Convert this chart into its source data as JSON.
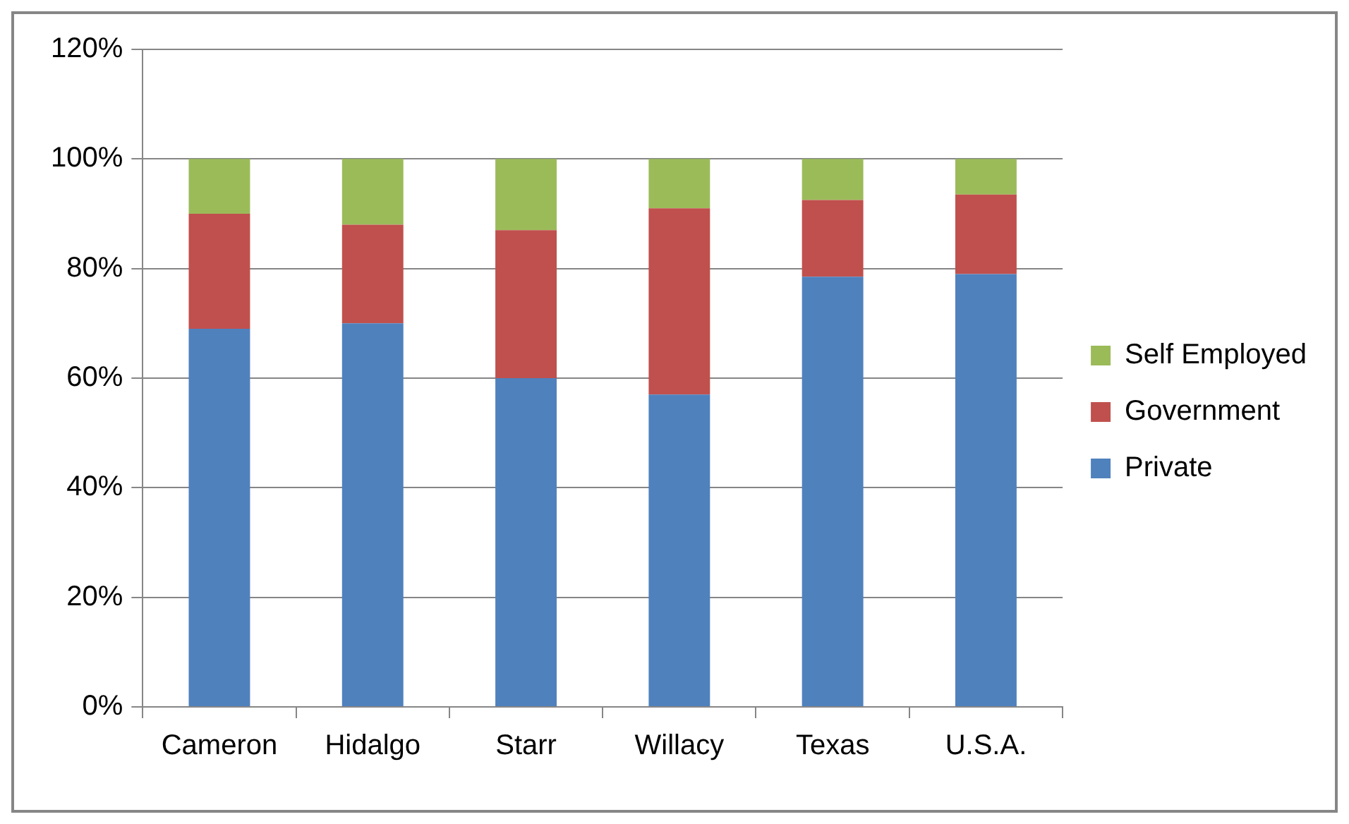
{
  "chart_data": {
    "type": "bar",
    "stacked": true,
    "categories": [
      "Cameron",
      "Hidalgo",
      "Starr",
      "Willacy",
      "Texas",
      "U.S.A."
    ],
    "series": [
      {
        "name": "Private",
        "color": "#4f81bd",
        "values": [
          69,
          70,
          60,
          57,
          78.5,
          79
        ]
      },
      {
        "name": "Government",
        "color": "#c0504d",
        "values": [
          21,
          18,
          27,
          34,
          14,
          14.5
        ]
      },
      {
        "name": "Self Employed",
        "color": "#9bbb59",
        "values": [
          10,
          12,
          13,
          9,
          7.5,
          6.5
        ]
      }
    ],
    "ylim": [
      0,
      120
    ],
    "yticks": [
      {
        "value": 0,
        "label": "0%"
      },
      {
        "value": 20,
        "label": "20%"
      },
      {
        "value": 40,
        "label": "40%"
      },
      {
        "value": 60,
        "label": "60%"
      },
      {
        "value": 80,
        "label": "80%"
      },
      {
        "value": 100,
        "label": "100%"
      },
      {
        "value": 120,
        "label": "120%"
      }
    ],
    "grid": "y",
    "legend": "right"
  }
}
